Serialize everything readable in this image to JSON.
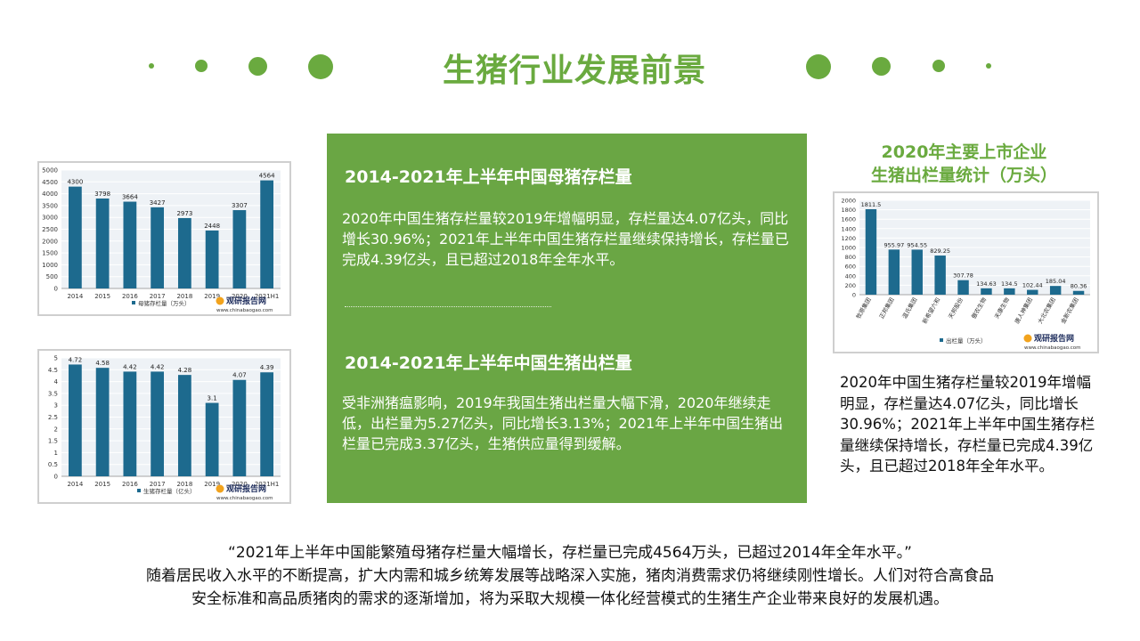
{
  "page_title": "生猪行业发展前景",
  "colors": {
    "accent": "#6aaa3f",
    "panel": "#6aa644",
    "bar": "#1d6a8e"
  },
  "panel": {
    "section1_title": "2014-2021年上半年中国母猪存栏量",
    "section1_text": "2020年中国生猪存栏量较2019年增幅明显，存栏量达4.07亿头，同比增长30.96%；2021年上半年中国生猪存栏量继续保持增长，存栏量已完成4.39亿头，且已超过2018年全年水平。",
    "section2_title": "2014-2021年上半年中国生猪出栏量",
    "section2_text": "受非洲猪瘟影响，2019年我国生猪出栏量大幅下滑，2020年继续走低，出栏量为5.27亿头，同比增长3.13%；2021年上半年中国生猪出栏量已完成3.37亿头，生猪供应量得到缓解。"
  },
  "right": {
    "title_line1": "2020年主要上市企业",
    "title_line2": "生猪出栏量统计（万头）",
    "text": "2020年中国生猪存栏量较2019年增幅明显，存栏量达4.07亿头，同比增长30.96%；2021年上半年中国生猪存栏量继续保持增长，存栏量已完成4.39亿头，且已超过2018年全年水平。"
  },
  "footer": {
    "line1": "“2021年上半年中国能繁殖母猪存栏量大幅增长，存栏量已完成4564万头，已超过2014年全年水平。”",
    "line2": "随着居民收入水平的不断提高，扩大内需和城乡统筹发展等战略深入实施，猪肉消费需求仍将继续刚性增长。人们对符合高食品",
    "line3": "安全标准和高品质猪肉的需求的逐渐增加，将为采取大规模一体化经营模式的生猪生产企业带来良好的发展机遇。"
  },
  "chart_data": [
    {
      "id": "sow",
      "type": "bar",
      "categories": [
        "2014",
        "2015",
        "2016",
        "2017",
        "2018",
        "2019",
        "2020",
        "2021H1"
      ],
      "values": [
        4300,
        3798,
        3664,
        3427,
        2973,
        2448,
        3307,
        4564
      ],
      "ylim": [
        0,
        5000
      ],
      "yticks": [
        0,
        500,
        1000,
        1500,
        2000,
        2500,
        3000,
        3500,
        4000,
        4500,
        5000
      ],
      "legend": "母猪存栏量（万头）",
      "logo_text": "观研报告网",
      "logo_url": "www.chinabaogao.com"
    },
    {
      "id": "hog",
      "type": "bar",
      "categories": [
        "2014",
        "2015",
        "2016",
        "2017",
        "2018",
        "2019",
        "2020",
        "2021H1"
      ],
      "values": [
        4.72,
        4.58,
        4.42,
        4.42,
        4.28,
        3.1,
        4.07,
        4.39
      ],
      "ylim": [
        0,
        5
      ],
      "yticks": [
        0,
        0.5,
        1,
        1.5,
        2,
        2.5,
        3,
        3.5,
        4,
        4.5,
        5
      ],
      "legend": "生猪存栏量（亿头）",
      "logo_text": "观研报告网",
      "logo_url": "www.chinabaogao.com"
    },
    {
      "id": "company",
      "type": "bar",
      "categories": [
        "牧原集团",
        "正邦集团",
        "温氏集团",
        "新希望六和",
        "天邦股份",
        "傲农生物",
        "天康生物",
        "唐人神集团",
        "大北农集团",
        "金新农集团"
      ],
      "values": [
        1811.5,
        955.97,
        954.55,
        829.25,
        307.78,
        134.63,
        134.5,
        102.44,
        185.04,
        80.36
      ],
      "ylim": [
        0,
        2000
      ],
      "yticks": [
        0,
        200,
        400,
        600,
        800,
        1000,
        1200,
        1400,
        1600,
        1800,
        2000
      ],
      "legend": "出栏量（万头）",
      "logo_text": "观研报告网",
      "logo_url": "www.chinabaogao.com"
    }
  ]
}
